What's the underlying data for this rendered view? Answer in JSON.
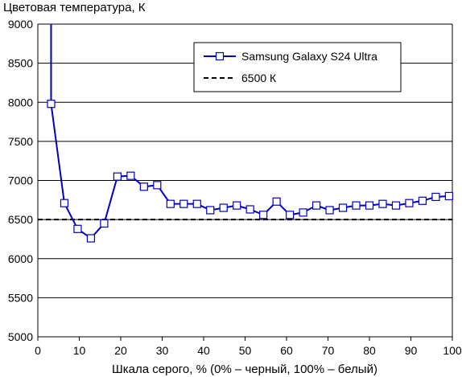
{
  "chart_data": {
    "type": "line",
    "title": "",
    "ylabel": "Цветовая температура, К",
    "xlabel": "Шкала серого, % (0% – черный, 100% – белый)",
    "xlim": [
      0,
      100
    ],
    "ylim": [
      5000,
      9000
    ],
    "xticks": [
      0,
      10,
      20,
      30,
      40,
      50,
      60,
      70,
      80,
      90,
      100
    ],
    "yticks": [
      5000,
      5500,
      6000,
      6500,
      7000,
      7500,
      8000,
      8500,
      9000
    ],
    "grid": "horizontal",
    "legend_position": "top-right",
    "series": [
      {
        "name": "Samsung Galaxy S24 Ultra",
        "color": "#0000c0",
        "marker": "open-square",
        "x": [
          3.2,
          6.4,
          9.6,
          12.8,
          16.0,
          19.2,
          22.4,
          25.6,
          28.8,
          32.0,
          35.2,
          38.4,
          41.6,
          44.8,
          48.0,
          51.2,
          54.4,
          57.6,
          60.8,
          64.0,
          67.2,
          70.4,
          73.6,
          76.8,
          80.0,
          83.2,
          86.4,
          89.6,
          92.8,
          96.0,
          99.2
        ],
        "y": [
          7980,
          6710,
          6380,
          6260,
          6450,
          7050,
          7060,
          6920,
          6940,
          6700,
          6700,
          6700,
          6620,
          6650,
          6680,
          6630,
          6560,
          6730,
          6560,
          6590,
          6680,
          6620,
          6650,
          6680,
          6680,
          6700,
          6680,
          6710,
          6740,
          6790,
          6800
        ],
        "offscale_start": {
          "x": 3.2,
          "y": 9000
        }
      },
      {
        "name": "6500 К",
        "color": "#000000",
        "style": "dashed",
        "x": [
          0,
          100
        ],
        "y": [
          6500,
          6500
        ]
      }
    ]
  }
}
